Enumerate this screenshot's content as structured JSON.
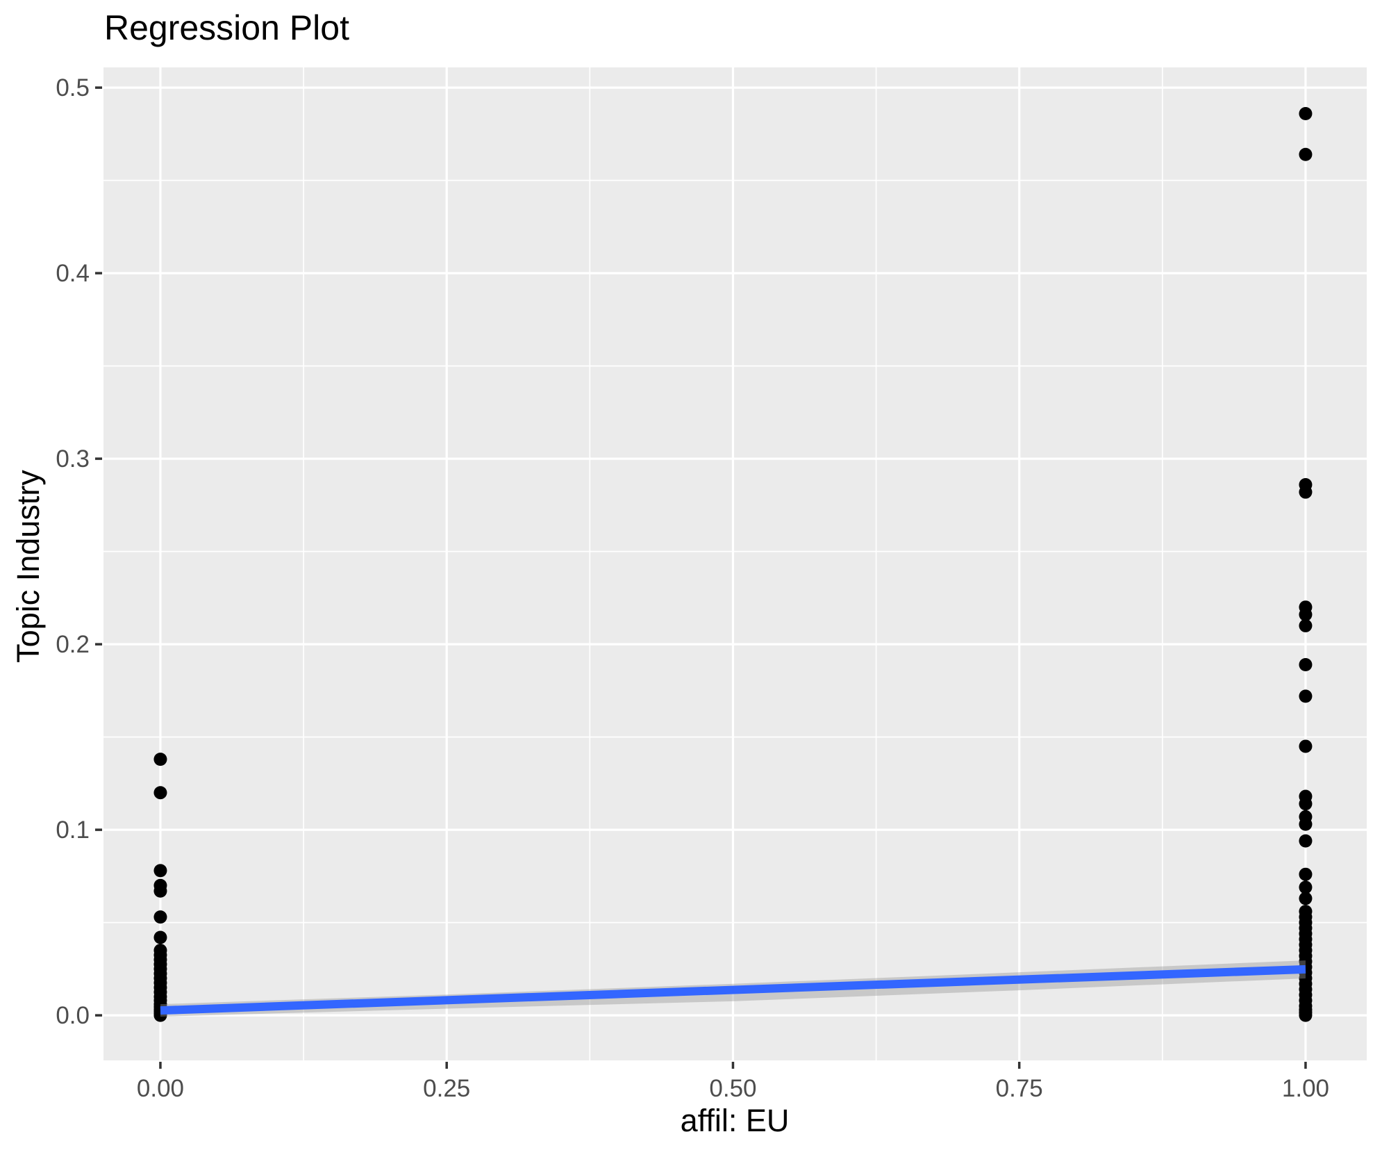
{
  "chart_data": {
    "type": "scatter",
    "title": "Regression Plot",
    "xlabel": "affil: EU",
    "ylabel": "Topic Industry",
    "xlim": [
      -0.0497,
      1.0534
    ],
    "ylim": [
      -0.0243,
      0.5109
    ],
    "grid": true,
    "legend": "none",
    "x_ticks": {
      "values": [
        0,
        0.25,
        0.5,
        0.75,
        1.0
      ],
      "labels": [
        "0.00",
        "0.25",
        "0.50",
        "0.75",
        "1.00"
      ]
    },
    "y_ticks": {
      "values": [
        0,
        0.1,
        0.2,
        0.3,
        0.4,
        0.5
      ],
      "labels": [
        "0.0",
        "0.1",
        "0.2",
        "0.3",
        "0.4",
        "0.5"
      ]
    },
    "x_minor": [
      0.125,
      0.375,
      0.625,
      0.875
    ],
    "y_minor": [
      0.05,
      0.15,
      0.25,
      0.35,
      0.45
    ],
    "theme": {
      "panel_bg": "#EBEBEB",
      "grid_color": "#FFFFFF",
      "tick_color": "#333333",
      "tick_label_color": "#4D4D4D",
      "point_color": "#000000",
      "line_color": "#3366FF",
      "band_color": "#999999"
    },
    "series": [
      {
        "name": "observations",
        "geom": "point",
        "color": "#000000",
        "radius": 9.5,
        "points": [
          [
            0,
            0.138
          ],
          [
            0,
            0.12
          ],
          [
            0,
            0.078
          ],
          [
            0,
            0.07
          ],
          [
            0,
            0.067
          ],
          [
            0,
            0.053
          ],
          [
            0,
            0.042
          ],
          [
            0,
            0.035
          ],
          [
            0,
            0.0325
          ],
          [
            0,
            0.03
          ],
          [
            0,
            0.0275
          ],
          [
            0,
            0.025
          ],
          [
            0,
            0.0225
          ],
          [
            0,
            0.02
          ],
          [
            0,
            0.0175
          ],
          [
            0,
            0.015
          ],
          [
            0,
            0.0125
          ],
          [
            0,
            0.01
          ],
          [
            0,
            0.008
          ],
          [
            0,
            0.006
          ],
          [
            0,
            0.0045
          ],
          [
            0,
            0.003
          ],
          [
            0,
            0.002
          ],
          [
            0,
            0.001
          ],
          [
            0,
            0.0005
          ],
          [
            0,
            0.0
          ],
          [
            1,
            0.486
          ],
          [
            1,
            0.464
          ],
          [
            1,
            0.286
          ],
          [
            1,
            0.282
          ],
          [
            1,
            0.22
          ],
          [
            1,
            0.216
          ],
          [
            1,
            0.21
          ],
          [
            1,
            0.189
          ],
          [
            1,
            0.172
          ],
          [
            1,
            0.145
          ],
          [
            1,
            0.118
          ],
          [
            1,
            0.114
          ],
          [
            1,
            0.107
          ],
          [
            1,
            0.103
          ],
          [
            1,
            0.094
          ],
          [
            1,
            0.076
          ],
          [
            1,
            0.069
          ],
          [
            1,
            0.063
          ],
          [
            1,
            0.056
          ],
          [
            1,
            0.053
          ],
          [
            1,
            0.05
          ],
          [
            1,
            0.047
          ],
          [
            1,
            0.044
          ],
          [
            1,
            0.041
          ],
          [
            1,
            0.038
          ],
          [
            1,
            0.035
          ],
          [
            1,
            0.032
          ],
          [
            1,
            0.029
          ],
          [
            1,
            0.026
          ],
          [
            1,
            0.023
          ],
          [
            1,
            0.02
          ],
          [
            1,
            0.017
          ],
          [
            1,
            0.014
          ],
          [
            1,
            0.011
          ],
          [
            1,
            0.008
          ],
          [
            1,
            0.005
          ],
          [
            1,
            0.003
          ],
          [
            1,
            0.0015
          ],
          [
            1,
            0.0
          ]
        ]
      },
      {
        "name": "confidence-band",
        "geom": "ribbon",
        "color": "#999999",
        "opacity": 0.42,
        "x": [
          0,
          0.25,
          0.5,
          0.75,
          1.0
        ],
        "upper": [
          0.006,
          0.0112,
          0.017,
          0.0232,
          0.0296
        ],
        "lower": [
          -0.0007,
          0.0036,
          0.0076,
          0.0135,
          0.0199
        ]
      },
      {
        "name": "linear-fit",
        "geom": "line",
        "color": "#3366FF",
        "width": 12,
        "x": [
          0,
          1
        ],
        "y": [
          0.0026,
          0.0248
        ]
      }
    ]
  }
}
